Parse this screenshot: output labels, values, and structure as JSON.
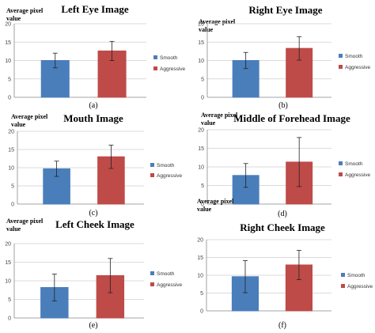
{
  "chart_data": [
    {
      "type": "bar",
      "title": "Left Eye Image",
      "ylabel": "Average pixel value",
      "panel_label": "(a)",
      "categories": [
        ""
      ],
      "ylim": [
        0,
        20
      ],
      "yticks": [
        "0",
        "5",
        "10",
        "15",
        "20"
      ],
      "grid": true,
      "legend": "right",
      "series": [
        {
          "name": "Smooth",
          "values": [
            10.0
          ],
          "error": [
            2.0
          ],
          "color": "#4a7ebb"
        },
        {
          "name": "Aggressive",
          "values": [
            12.6
          ],
          "error": [
            2.6
          ],
          "color": "#be4b48"
        }
      ]
    },
    {
      "type": "bar",
      "title": "Right Eye Image",
      "ylabel": "Average pixel value",
      "panel_label": "(b)",
      "categories": [
        ""
      ],
      "ylim": [
        0,
        20
      ],
      "yticks": [
        "0",
        "5",
        "10",
        "15",
        "20"
      ],
      "grid": true,
      "legend": "right",
      "series": [
        {
          "name": "Smooth",
          "values": [
            10.0
          ],
          "error": [
            2.2
          ],
          "color": "#4a7ebb"
        },
        {
          "name": "Aggressive",
          "values": [
            13.3
          ],
          "error": [
            3.2
          ],
          "color": "#be4b48"
        }
      ]
    },
    {
      "type": "bar",
      "title": "Mouth Image",
      "ylabel": "Average pixel value",
      "panel_label": "(c)",
      "categories": [
        ""
      ],
      "ylim": [
        0,
        20
      ],
      "yticks": [
        "0",
        "5",
        "10",
        "15",
        "20"
      ],
      "grid": true,
      "legend": "right",
      "series": [
        {
          "name": "Smooth",
          "values": [
            9.7
          ],
          "error": [
            2.1
          ],
          "color": "#4a7ebb"
        },
        {
          "name": "Aggressive",
          "values": [
            13.0
          ],
          "error": [
            3.2
          ],
          "color": "#be4b48"
        }
      ]
    },
    {
      "type": "bar",
      "title": "Middle of Forehead Image",
      "ylabel": "Average pixel value",
      "panel_label": "(d)",
      "categories": [
        ""
      ],
      "ylim": [
        0,
        20
      ],
      "yticks": [
        "0",
        "5",
        "10",
        "15",
        "20"
      ],
      "grid": true,
      "legend": "right",
      "series": [
        {
          "name": "Smooth",
          "values": [
            7.7
          ],
          "error": [
            3.2
          ],
          "color": "#4a7ebb"
        },
        {
          "name": "Aggressive",
          "values": [
            11.3
          ],
          "error": [
            6.6
          ],
          "color": "#be4b48"
        }
      ]
    },
    {
      "type": "bar",
      "title": "Left Cheek Image",
      "ylabel": "Average pixel value",
      "panel_label": "(e)",
      "categories": [
        ""
      ],
      "ylim": [
        0,
        20
      ],
      "yticks": [
        "0",
        "5",
        "10",
        "15",
        "20"
      ],
      "grid": true,
      "legend": "right",
      "series": [
        {
          "name": "Smooth",
          "values": [
            8.2
          ],
          "error": [
            3.6
          ],
          "color": "#4a7ebb"
        },
        {
          "name": "Aggressive",
          "values": [
            11.4
          ],
          "error": [
            4.6
          ],
          "color": "#be4b48"
        }
      ]
    },
    {
      "type": "bar",
      "title": "Right Cheek Image",
      "ylabel": "Average pixel value",
      "panel_label": "(f)",
      "categories": [
        ""
      ],
      "ylim": [
        0,
        20
      ],
      "yticks": [
        "0",
        "5",
        "10",
        "15",
        "20"
      ],
      "grid": true,
      "legend": "right",
      "series": [
        {
          "name": "Smooth",
          "values": [
            9.6
          ],
          "error": [
            4.5
          ],
          "color": "#4a7ebb"
        },
        {
          "name": "Aggressive",
          "values": [
            12.9
          ],
          "error": [
            4.1
          ],
          "color": "#be4b48"
        }
      ]
    }
  ]
}
